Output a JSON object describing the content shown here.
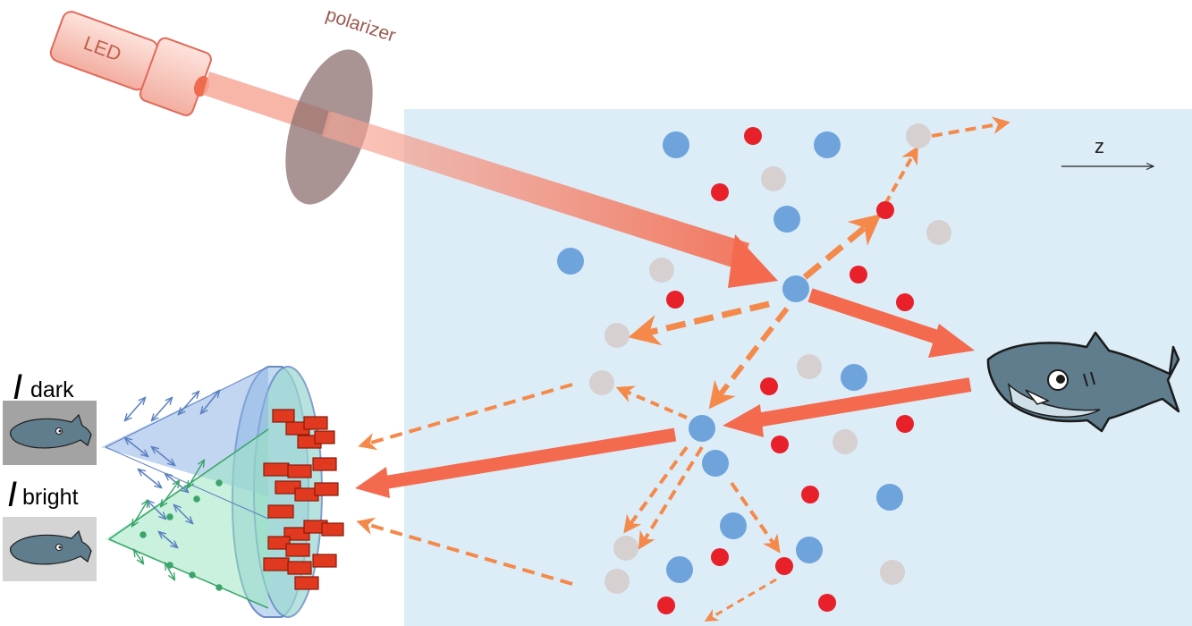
{
  "labels": {
    "led": "LED",
    "polarizer": "polarizer",
    "z_axis": "z",
    "i_symbol": "I",
    "dark_subscript": "dark",
    "bright_subscript": "bright"
  },
  "colors": {
    "medium": "#dcedf7",
    "beam": "#f46a4e",
    "scatter": "#f5894a",
    "particle_blue": "#6fa3dc",
    "particle_red": "#e8202a",
    "particle_gray": "#d6d0d0",
    "polarizer": "#8e6f6f",
    "led_body": "#f7c6bd",
    "led_outline": "#e06a5a",
    "lens_blue": "#5a7fc0",
    "lens_green": "#7fd6a7",
    "sensor_red": "#e0391f",
    "shark": "#5f7d8c",
    "dark_box": "#a3a3a3",
    "bright_box": "#d4d4d4"
  },
  "icons": {
    "target": "shark-icon",
    "thumb_dark": "fish-icon",
    "thumb_bright": "fish-icon"
  }
}
